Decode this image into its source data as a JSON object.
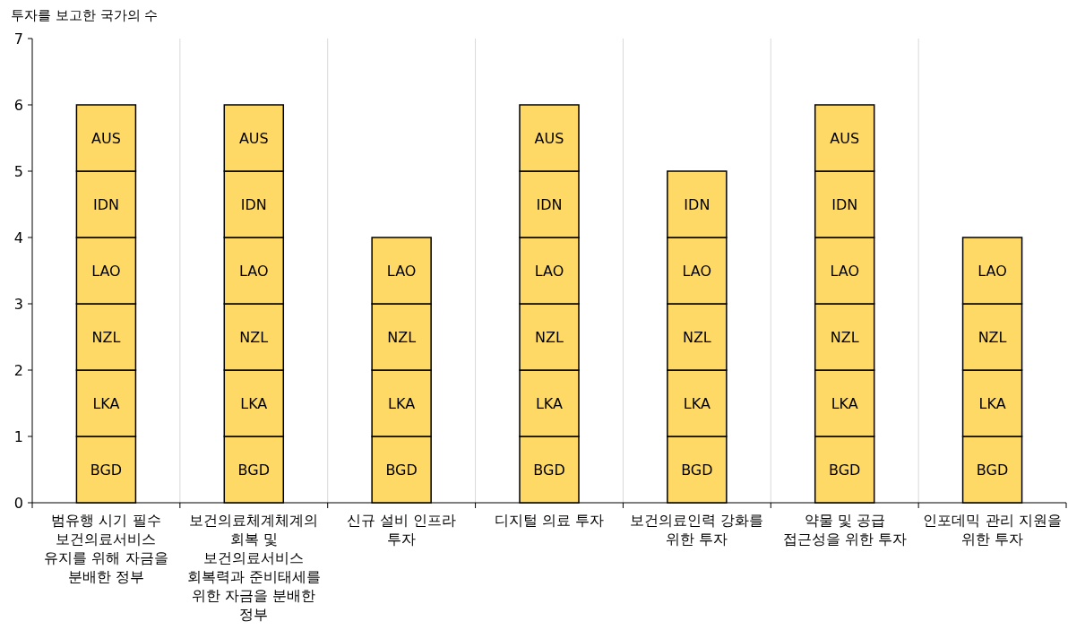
{
  "chart_data": {
    "type": "bar",
    "stacked": true,
    "ylabel": "투자를 보고한 국가의 수",
    "categories": [
      "범유행 시기 필수 보건의료서비스 유지를 위해 자금을 분배한 정부",
      "보건의료체계체계의 회복 및 보건의료서비스 회복력과 준비태세를 위한 자금을 분배한 정부",
      "신규 설비 인프라 투자",
      "디지털 의료 투자",
      "보건의료인력 강화를 위한 투자",
      "약물 및 공급 접근성을 위한 투자",
      "인포데믹 관리 지원을 위한 투자"
    ],
    "series": [
      {
        "name": "BGD",
        "color": "#ffd966",
        "values": [
          1,
          1,
          1,
          1,
          1,
          1,
          1
        ]
      },
      {
        "name": "LKA",
        "color": "#ffd966",
        "values": [
          1,
          1,
          1,
          1,
          1,
          1,
          1
        ]
      },
      {
        "name": "NZL",
        "color": "#ffd966",
        "values": [
          1,
          1,
          1,
          1,
          1,
          1,
          1
        ]
      },
      {
        "name": "LAO",
        "color": "#ffd966",
        "values": [
          1,
          1,
          1,
          1,
          1,
          1,
          1
        ]
      },
      {
        "name": "IDN",
        "color": "#ffd966",
        "values": [
          1,
          1,
          null,
          1,
          1,
          1,
          null
        ]
      },
      {
        "name": "AUS",
        "color": "#ffd966",
        "values": [
          1,
          1,
          null,
          1,
          null,
          1,
          null
        ]
      }
    ],
    "ylim": [
      0,
      7
    ],
    "yticks": [
      0,
      1,
      2,
      3,
      4,
      5,
      6,
      7
    ],
    "grid": "x"
  }
}
